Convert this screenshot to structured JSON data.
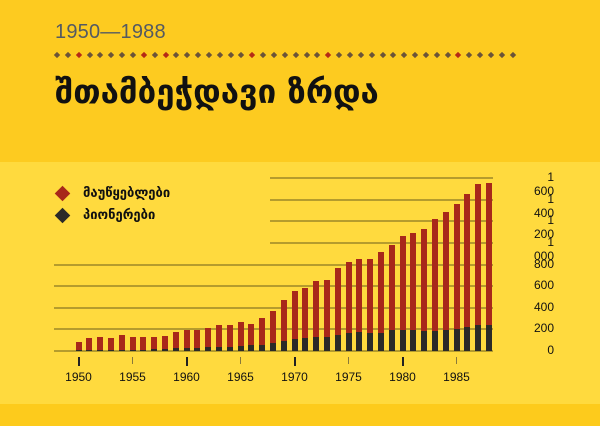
{
  "header": {
    "years": "1950—1988",
    "title": "შთამბეჭდავი ზრდა",
    "dot_row": {
      "count": 43,
      "red_indices": [
        2,
        8,
        10,
        18,
        25,
        37
      ],
      "dot_color": "#6b5438",
      "accent_color": "#b52a16"
    }
  },
  "legend": {
    "items": [
      {
        "label": "მაუწყებლები",
        "color": "#a8281a"
      },
      {
        "label": "პიონერები",
        "color": "#2b2a28"
      }
    ]
  },
  "chart_data": {
    "type": "bar",
    "stacked": true,
    "title": "შთამბეჭდავი ზრდა",
    "subtitle": "1950—1988",
    "xlabel": "",
    "ylabel": "",
    "ylim": [
      0,
      1600
    ],
    "y_ticks": [
      0,
      200,
      400,
      600,
      800,
      1000,
      1200,
      1400,
      1600
    ],
    "y_tick_labels": [
      "0",
      "200",
      "400",
      "600",
      "800",
      "1 000",
      "1 200",
      "1 400",
      "1 600"
    ],
    "x_tick_labels": [
      "1950",
      "1955",
      "1960",
      "1965",
      "1970",
      "1975",
      "1980",
      "1985"
    ],
    "grid": true,
    "legend_position": "top-left",
    "categories": [
      1950,
      1951,
      1952,
      1953,
      1954,
      1955,
      1956,
      1957,
      1958,
      1959,
      1960,
      1961,
      1962,
      1963,
      1964,
      1965,
      1966,
      1967,
      1968,
      1969,
      1970,
      1971,
      1972,
      1973,
      1974,
      1975,
      1976,
      1977,
      1978,
      1979,
      1980,
      1981,
      1982,
      1983,
      1984,
      1985,
      1986,
      1987,
      1988
    ],
    "series": [
      {
        "name": "პიონერები",
        "color": "#2b2a28",
        "values": [
          5,
          10,
          10,
          10,
          12,
          12,
          12,
          15,
          20,
          28,
          28,
          28,
          34,
          34,
          37,
          46,
          52,
          58,
          70,
          89,
          114,
          123,
          127,
          127,
          145,
          167,
          173,
          167,
          170,
          191,
          197,
          191,
          188,
          182,
          197,
          200,
          225,
          243,
          243
        ]
      },
      {
        "name": "მაუწყებლები",
        "color": "#a8281a",
        "values": [
          81,
          113,
          120,
          113,
          133,
          115,
          115,
          117,
          119,
          148,
          169,
          169,
          182,
          209,
          206,
          225,
          201,
          248,
          300,
          383,
          444,
          460,
          518,
          530,
          620,
          657,
          676,
          682,
          744,
          787,
          868,
          904,
          938,
          1037,
          1090,
          1155,
          1229,
          1300,
          1313
        ]
      }
    ],
    "totals": [
      86,
      123,
      130,
      123,
      145,
      127,
      127,
      132,
      139,
      176,
      197,
      197,
      216,
      243,
      243,
      271,
      253,
      306,
      370,
      472,
      558,
      583,
      645,
      657,
      765,
      824,
      849,
      849,
      914,
      978,
      1065,
      1095,
      1126,
      1219,
      1287,
      1355,
      1454,
      1543,
      1556
    ]
  }
}
